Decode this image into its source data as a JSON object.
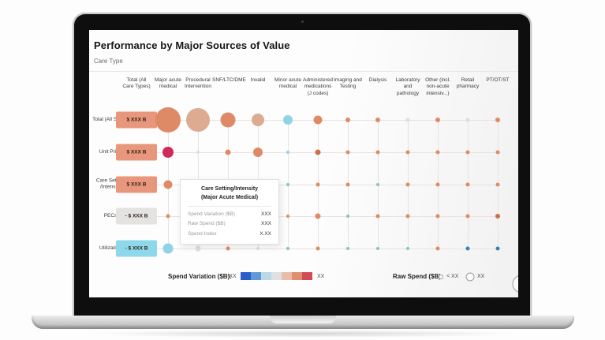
{
  "header": {
    "title": "Performance by Major Sources of Value",
    "filter_label": "Care Type"
  },
  "chart_data": {
    "type": "scatter",
    "subtype": "bubble-matrix",
    "title": "Performance by Major Sources of Value",
    "columns": [
      "Total (All Care Types)",
      "Major acute medical",
      "Procedural Intervention",
      "SNF/LTC/DME",
      "Invalid",
      "Minor acute medical",
      "Administered medications (J codes)",
      "Imaging and Testing",
      "Dialysis",
      "Laboratory and pathology",
      "Other (incl. non-acute intensiv...)",
      "Retail pharmacy",
      "PT/OT/ST"
    ],
    "rows": [
      {
        "label": "Total (All SOVs)",
        "box_value": "$ XXX B",
        "box_style": "box_salmon"
      },
      {
        "label": "Unit Price",
        "box_value": "$ XXX B",
        "box_style": "box_salmon"
      },
      {
        "label": "Care Setting /Intensity",
        "box_value": "$ XXX B",
        "box_style": "box_salmon"
      },
      {
        "label": "PECs",
        "box_value": "- $ XXX B",
        "box_style": "box_gray"
      },
      {
        "label": "Utilization",
        "box_value": "- $ XXX B",
        "box_style": "box_blue"
      }
    ],
    "palette": {
      "S": "#DF8A67",
      "L": "#DCAB92",
      "C": "#CE2A5C",
      "B": "#8FD3E8",
      "T": "#7FC9B6",
      "U": "#3D7BC0",
      "P": "#E0DDDB",
      "D": "#CE6F4C",
      "box_salmon": "#E8977C",
      "box_gray": "#E4E3E2",
      "box_blue": "#8ED8EB"
    },
    "cells": [
      [
        {
          "size": 32,
          "color": "S"
        },
        {
          "size": 30,
          "color": "L"
        },
        {
          "size": 19,
          "color": "S"
        },
        {
          "size": 16,
          "color": "L"
        },
        {
          "size": 12,
          "color": "B"
        },
        {
          "size": 11,
          "color": "S"
        },
        {
          "size": 6,
          "color": "S"
        },
        {
          "size": 6,
          "color": "S"
        },
        {
          "size": 5,
          "color": "P"
        },
        {
          "size": 6,
          "color": "S"
        },
        {
          "size": 5,
          "color": "P"
        },
        {
          "size": 6,
          "color": "S"
        }
      ],
      [
        {
          "size": 14,
          "color": "C"
        },
        {
          "size": 4,
          "color": "P"
        },
        {
          "size": 7,
          "color": "S"
        },
        {
          "size": 12,
          "color": "S"
        },
        {
          "size": 4,
          "color": "B"
        },
        {
          "size": 7,
          "color": "D"
        },
        {
          "size": 5,
          "color": "S"
        },
        {
          "size": 5,
          "color": "S"
        },
        {
          "size": 5,
          "color": "S"
        },
        {
          "size": 5,
          "color": "S"
        },
        {
          "size": 5,
          "color": "S"
        },
        {
          "size": 5,
          "color": "S"
        }
      ],
      [
        {
          "size": 11,
          "color": "S"
        },
        {
          "size": 13,
          "color": "S"
        },
        {
          "size": 5,
          "color": "S"
        },
        {
          "size": 5,
          "color": "S"
        },
        {
          "size": 4,
          "color": "T"
        },
        {
          "size": 5,
          "color": "S"
        },
        {
          "size": 5,
          "color": "S"
        },
        {
          "size": 4,
          "color": "T"
        },
        {
          "size": 5,
          "color": "S"
        },
        {
          "size": 5,
          "color": "S"
        },
        {
          "size": 5,
          "color": "S"
        },
        {
          "size": 5,
          "color": "S"
        }
      ],
      [
        {
          "size": 5,
          "color": "S"
        },
        {
          "size": 4,
          "color": "S"
        },
        {
          "size": 4,
          "color": "S"
        },
        {
          "size": 4,
          "color": "S"
        },
        {
          "size": 4,
          "color": "S"
        },
        {
          "size": 7,
          "color": "S"
        },
        {
          "size": 4,
          "color": "T"
        },
        {
          "size": 5,
          "color": "S"
        },
        {
          "size": 5,
          "color": "S"
        },
        {
          "size": 5,
          "color": "S"
        },
        {
          "size": 5,
          "color": "S"
        },
        {
          "size": 6,
          "color": "D"
        }
      ],
      [
        {
          "size": 13,
          "color": "B"
        },
        {
          "size": 7,
          "color": "P"
        },
        {
          "size": 5,
          "color": "S"
        },
        {
          "size": 4,
          "color": "P"
        },
        {
          "size": 4,
          "color": "T"
        },
        {
          "size": 5,
          "color": "S"
        },
        {
          "size": 4,
          "color": "T"
        },
        {
          "size": 4,
          "color": "T"
        },
        {
          "size": 4,
          "color": "T"
        },
        {
          "size": 5,
          "color": "S"
        },
        {
          "size": 5,
          "color": "U"
        },
        {
          "size": 5,
          "color": "U"
        }
      ]
    ]
  },
  "tooltip": {
    "title_line1": "Care Setting/Intensity",
    "title_line2": "(Major Acute Medical)",
    "rows": [
      {
        "label": "Spend Variation ($B)",
        "value": "XXX"
      },
      {
        "label": "Raw Spend ($B)",
        "value": "XXX"
      },
      {
        "label": "Spend Index",
        "value": "X.XX"
      }
    ]
  },
  "legend": {
    "spend_label": "Spend Variation ($B):",
    "spend_min": "-XX",
    "spend_max": "XX",
    "scale_colors": [
      "#2B5FC8",
      "#5E9AD8",
      "#B9D8E8",
      "#E0E0E0",
      "#E6BEA9",
      "#DD8F6F",
      "#D14B57"
    ],
    "raw_label": "Raw Spend ($B):",
    "raw_small": "< XX",
    "raw_medium": "XX"
  }
}
